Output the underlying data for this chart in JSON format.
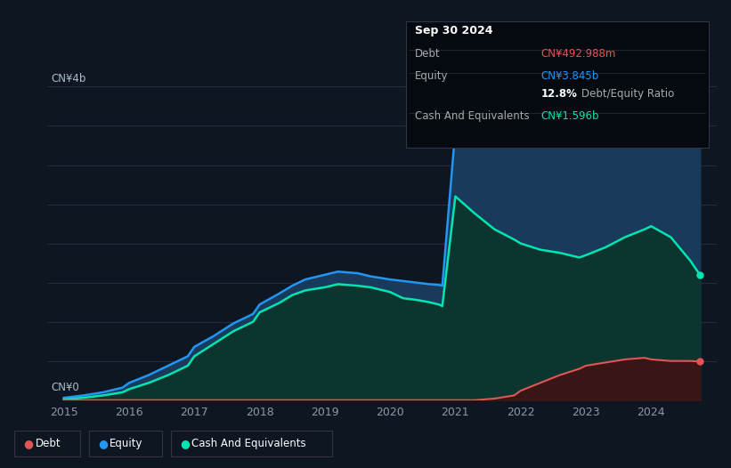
{
  "background_color": "#0e1621",
  "plot_bg_color": "#0e1621",
  "ylabel_top": "CN¥4b",
  "ylabel_bottom": "CN¥0",
  "x_ticks": [
    2015,
    2016,
    2017,
    2018,
    2019,
    2020,
    2021,
    2022,
    2023,
    2024
  ],
  "equity_color": "#2196f3",
  "equity_fill_color": "#1a3a5c",
  "cash_color": "#00e5b0",
  "cash_fill_color": "#0d3530",
  "debt_color": "#e05555",
  "debt_fill_color": "#3a1515",
  "grid_color": "#1e2d40",
  "years": [
    2015.0,
    2015.3,
    2015.6,
    2015.9,
    2016.0,
    2016.3,
    2016.6,
    2016.9,
    2017.0,
    2017.3,
    2017.6,
    2017.9,
    2018.0,
    2018.3,
    2018.5,
    2018.7,
    2019.0,
    2019.2,
    2019.5,
    2019.7,
    2020.0,
    2020.2,
    2020.4,
    2020.6,
    2020.75,
    2020.8,
    2021.0,
    2021.3,
    2021.6,
    2021.9,
    2022.0,
    2022.3,
    2022.6,
    2022.9,
    2023.0,
    2023.3,
    2023.6,
    2023.9,
    2024.0,
    2024.3,
    2024.6,
    2024.75
  ],
  "equity": [
    0.03,
    0.06,
    0.1,
    0.16,
    0.22,
    0.32,
    0.44,
    0.56,
    0.68,
    0.82,
    0.98,
    1.1,
    1.22,
    1.36,
    1.46,
    1.54,
    1.6,
    1.64,
    1.62,
    1.58,
    1.54,
    1.52,
    1.5,
    1.48,
    1.47,
    1.46,
    3.45,
    3.55,
    3.62,
    3.68,
    3.7,
    3.74,
    3.78,
    3.8,
    3.82,
    3.84,
    3.86,
    3.87,
    3.88,
    3.9,
    3.92,
    3.845
  ],
  "cash": [
    0.01,
    0.03,
    0.06,
    0.1,
    0.14,
    0.22,
    0.32,
    0.44,
    0.56,
    0.72,
    0.88,
    1.0,
    1.12,
    1.24,
    1.34,
    1.4,
    1.44,
    1.48,
    1.46,
    1.44,
    1.38,
    1.3,
    1.28,
    1.25,
    1.22,
    1.2,
    2.6,
    2.38,
    2.18,
    2.05,
    2.0,
    1.92,
    1.88,
    1.82,
    1.85,
    1.95,
    2.08,
    2.18,
    2.22,
    2.08,
    1.78,
    1.596
  ],
  "debt": [
    0.0,
    0.0,
    0.0,
    0.0,
    0.0,
    0.0,
    0.0,
    0.0,
    0.0,
    0.0,
    0.0,
    0.0,
    0.0,
    0.0,
    0.0,
    0.0,
    0.0,
    0.0,
    0.0,
    0.0,
    0.0,
    0.0,
    0.0,
    0.0,
    0.0,
    0.0,
    0.0,
    0.0,
    0.02,
    0.06,
    0.12,
    0.22,
    0.32,
    0.4,
    0.44,
    0.48,
    0.52,
    0.54,
    0.52,
    0.5,
    0.5,
    0.493
  ],
  "ylim": [
    0,
    4.3
  ],
  "xlim": [
    2014.75,
    2025.0
  ],
  "tooltip": {
    "date": "Sep 30 2024",
    "debt_label": "Debt",
    "debt_value": "CN¥492.988m",
    "debt_color": "#e05555",
    "equity_label": "Equity",
    "equity_value": "CN¥3.845b",
    "equity_color": "#2196f3",
    "ratio_pct": "12.8%",
    "ratio_label": "Debt/Equity Ratio",
    "cash_label": "Cash And Equivalents",
    "cash_value": "CN¥1.596b",
    "cash_color": "#00e5b0"
  }
}
